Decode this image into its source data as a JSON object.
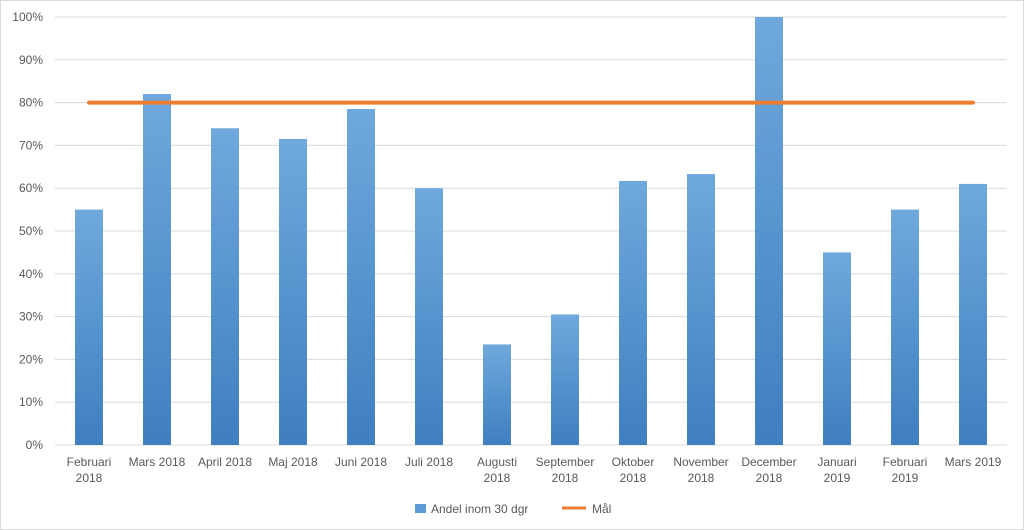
{
  "chart_data": {
    "type": "bar",
    "categories": [
      [
        "Februari",
        "2018"
      ],
      [
        "Mars 2018"
      ],
      [
        "April 2018"
      ],
      [
        "Maj 2018"
      ],
      [
        "Juni 2018"
      ],
      [
        "Juli 2018"
      ],
      [
        "Augusti",
        "2018"
      ],
      [
        "September",
        "2018"
      ],
      [
        "Oktober",
        "2018"
      ],
      [
        "November",
        "2018"
      ],
      [
        "December",
        "2018"
      ],
      [
        "Januari",
        "2019"
      ],
      [
        "Februari",
        "2019"
      ],
      [
        "Mars 2019"
      ]
    ],
    "series": [
      {
        "name": "Andel inom 30 dgr",
        "type": "bar",
        "values": [
          0.55,
          0.82,
          0.74,
          0.715,
          0.785,
          0.6,
          0.235,
          0.305,
          0.617,
          0.633,
          1.0,
          0.45,
          0.55,
          0.61
        ]
      },
      {
        "name": "Mål",
        "type": "line",
        "values": [
          0.8,
          0.8,
          0.8,
          0.8,
          0.8,
          0.8,
          0.8,
          0.8,
          0.8,
          0.8,
          0.8,
          0.8,
          0.8,
          0.8
        ]
      }
    ],
    "y_ticks": [
      "0%",
      "10%",
      "20%",
      "30%",
      "40%",
      "50%",
      "60%",
      "70%",
      "80%",
      "90%",
      "100%"
    ],
    "ylim": [
      0,
      1
    ],
    "grid": true,
    "legend_position": "bottom",
    "colors": {
      "bar": "#5b9bd5",
      "bar_dark": "#3f7fc0",
      "line": "#ed7d31",
      "grid": "#d9d9d9",
      "text": "#595959"
    }
  }
}
